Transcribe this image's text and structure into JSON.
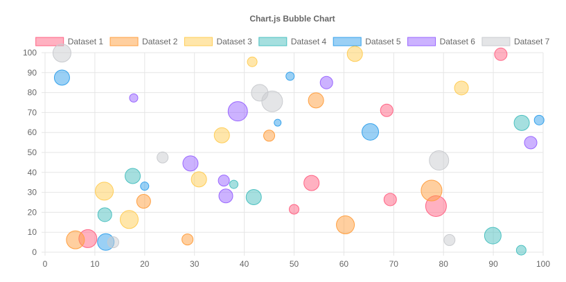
{
  "chart_data": {
    "type": "bubble",
    "title": "Chart.js Bubble Chart",
    "xlabel": "",
    "ylabel": "",
    "xlim": [
      0,
      100
    ],
    "ylim": [
      0,
      100
    ],
    "x_ticks": [
      0,
      10,
      20,
      30,
      40,
      50,
      60,
      70,
      80,
      90,
      100
    ],
    "y_ticks": [
      0,
      10,
      20,
      30,
      40,
      50,
      60,
      70,
      80,
      90,
      100
    ],
    "grid": true,
    "legend_position": "top",
    "series": [
      {
        "name": "Dataset 1",
        "border_color": "#ff6384",
        "fill_color": "rgba(255,99,132,0.5)",
        "points": [
          {
            "x": 91.5,
            "y": 99.2,
            "r": 9
          },
          {
            "x": 8.6,
            "y": 6.8,
            "r": 13
          },
          {
            "x": 53.5,
            "y": 34.7,
            "r": 11
          },
          {
            "x": 68.6,
            "y": 71.1,
            "r": 9
          },
          {
            "x": 50.0,
            "y": 21.5,
            "r": 7
          },
          {
            "x": 69.3,
            "y": 26.4,
            "r": 9
          },
          {
            "x": 78.5,
            "y": 23.1,
            "r": 15
          }
        ]
      },
      {
        "name": "Dataset 2",
        "border_color": "#ff9f40",
        "fill_color": "rgba(255,159,64,0.5)",
        "points": [
          {
            "x": 6.1,
            "y": 6.2,
            "r": 13
          },
          {
            "x": 19.8,
            "y": 25.5,
            "r": 10
          },
          {
            "x": 28.6,
            "y": 6.4,
            "r": 8
          },
          {
            "x": 45.0,
            "y": 58.4,
            "r": 8
          },
          {
            "x": 54.4,
            "y": 76.1,
            "r": 11
          },
          {
            "x": 60.3,
            "y": 13.7,
            "r": 13
          },
          {
            "x": 77.6,
            "y": 30.9,
            "r": 15
          }
        ]
      },
      {
        "name": "Dataset 3",
        "border_color": "#ffcd56",
        "fill_color": "rgba(255,205,86,0.5)",
        "points": [
          {
            "x": 41.6,
            "y": 95.4,
            "r": 7
          },
          {
            "x": 62.2,
            "y": 99.4,
            "r": 11
          },
          {
            "x": 83.6,
            "y": 82.3,
            "r": 10
          },
          {
            "x": 35.5,
            "y": 58.6,
            "r": 11
          },
          {
            "x": 30.9,
            "y": 36.5,
            "r": 11
          },
          {
            "x": 11.9,
            "y": 30.6,
            "r": 13
          },
          {
            "x": 16.9,
            "y": 16.4,
            "r": 13
          }
        ]
      },
      {
        "name": "Dataset 4",
        "border_color": "#4bc0c0",
        "fill_color": "rgba(75,192,192,0.5)",
        "points": [
          {
            "x": 17.6,
            "y": 38.2,
            "r": 11
          },
          {
            "x": 12.0,
            "y": 18.8,
            "r": 10
          },
          {
            "x": 37.9,
            "y": 34.0,
            "r": 6
          },
          {
            "x": 41.9,
            "y": 27.6,
            "r": 11
          },
          {
            "x": 95.7,
            "y": 64.8,
            "r": 11
          },
          {
            "x": 89.9,
            "y": 8.3,
            "r": 12
          },
          {
            "x": 95.6,
            "y": 1.0,
            "r": 7
          }
        ]
      },
      {
        "name": "Dataset 5",
        "border_color": "#36a2eb",
        "fill_color": "rgba(54,162,235,0.5)",
        "points": [
          {
            "x": 3.4,
            "y": 87.5,
            "r": 11
          },
          {
            "x": 20.0,
            "y": 33.1,
            "r": 6
          },
          {
            "x": 12.2,
            "y": 5.1,
            "r": 12
          },
          {
            "x": 46.7,
            "y": 64.9,
            "r": 5
          },
          {
            "x": 49.2,
            "y": 88.2,
            "r": 6
          },
          {
            "x": 65.3,
            "y": 60.3,
            "r": 12
          },
          {
            "x": 99.2,
            "y": 66.2,
            "r": 7
          }
        ]
      },
      {
        "name": "Dataset 6",
        "border_color": "#9966ff",
        "fill_color": "rgba(153,102,255,0.5)",
        "points": [
          {
            "x": 17.8,
            "y": 77.3,
            "r": 6
          },
          {
            "x": 29.2,
            "y": 44.5,
            "r": 11
          },
          {
            "x": 38.7,
            "y": 70.6,
            "r": 14
          },
          {
            "x": 35.9,
            "y": 35.9,
            "r": 8
          },
          {
            "x": 36.3,
            "y": 28.2,
            "r": 10
          },
          {
            "x": 56.5,
            "y": 85.0,
            "r": 9
          },
          {
            "x": 97.5,
            "y": 54.9,
            "r": 9
          }
        ]
      },
      {
        "name": "Dataset 7",
        "border_color": "#c9cbcf",
        "fill_color": "rgba(201,203,207,0.5)",
        "points": [
          {
            "x": 3.4,
            "y": 99.8,
            "r": 13
          },
          {
            "x": 13.7,
            "y": 5.0,
            "r": 8
          },
          {
            "x": 23.6,
            "y": 47.5,
            "r": 8
          },
          {
            "x": 43.1,
            "y": 79.9,
            "r": 12
          },
          {
            "x": 45.6,
            "y": 75.6,
            "r": 15
          },
          {
            "x": 79.1,
            "y": 46.0,
            "r": 14
          },
          {
            "x": 81.2,
            "y": 6.1,
            "r": 8
          }
        ]
      }
    ]
  }
}
